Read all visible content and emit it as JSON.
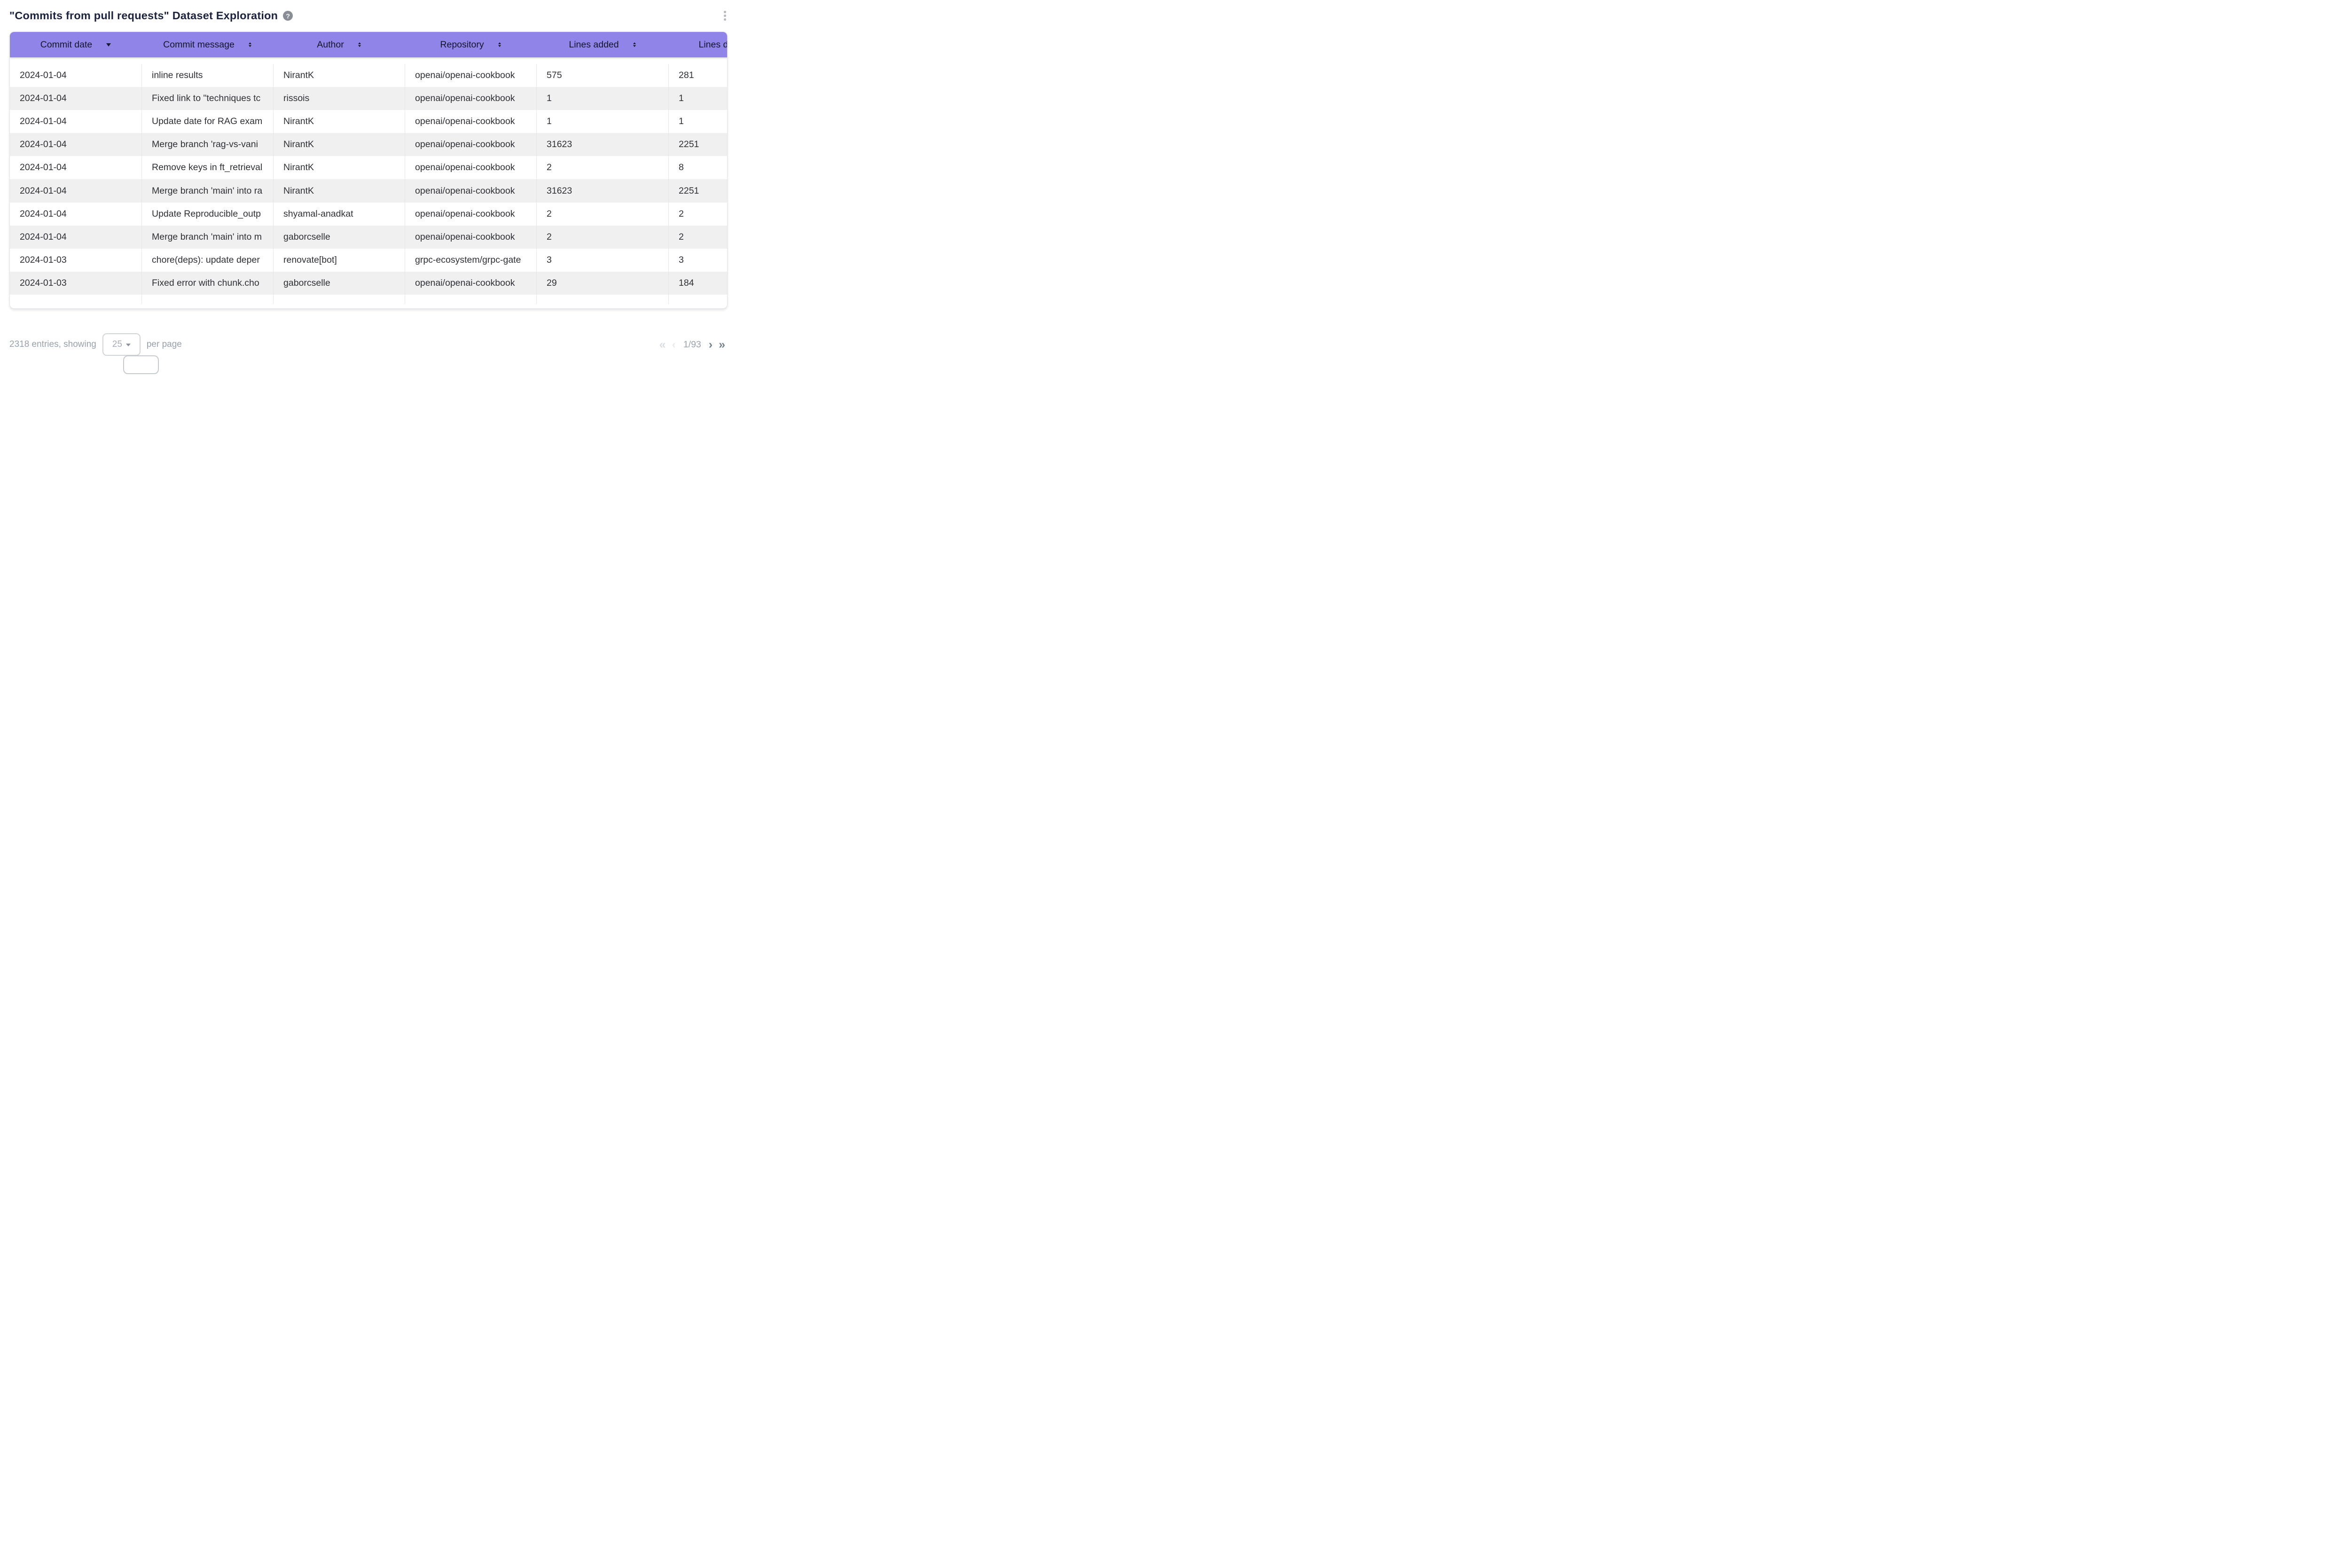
{
  "header": {
    "title": "\"Commits from pull requests\" Dataset Exploration",
    "help_icon": "?",
    "menu_icon": "kebab-vertical-dots"
  },
  "table": {
    "columns": [
      {
        "label": "Commit date",
        "field": "date",
        "sort": "desc"
      },
      {
        "label": "Commit message",
        "field": "message",
        "sort": "none"
      },
      {
        "label": "Author",
        "field": "author",
        "sort": "none"
      },
      {
        "label": "Repository",
        "field": "repo",
        "sort": "none"
      },
      {
        "label": "Lines added",
        "field": "added",
        "sort": "none"
      },
      {
        "label": "Lines deleted",
        "field": "deleted",
        "sort": "none"
      }
    ],
    "rows": [
      {
        "date": "2024-01-04",
        "message": "inline results",
        "author": "NirantK",
        "repo": "openai/openai-cookbook",
        "added": "575",
        "deleted": "281"
      },
      {
        "date": "2024-01-04",
        "message": "Fixed link to \"techniques tc",
        "author": "rissois",
        "repo": "openai/openai-cookbook",
        "added": "1",
        "deleted": "1"
      },
      {
        "date": "2024-01-04",
        "message": "Update date for RAG exam",
        "author": "NirantK",
        "repo": "openai/openai-cookbook",
        "added": "1",
        "deleted": "1"
      },
      {
        "date": "2024-01-04",
        "message": "Merge branch 'rag-vs-vani",
        "author": "NirantK",
        "repo": "openai/openai-cookbook",
        "added": "31623",
        "deleted": "2251"
      },
      {
        "date": "2024-01-04",
        "message": "Remove keys in ft_retrieval",
        "author": "NirantK",
        "repo": "openai/openai-cookbook",
        "added": "2",
        "deleted": "8"
      },
      {
        "date": "2024-01-04",
        "message": "Merge branch 'main' into ra",
        "author": "NirantK",
        "repo": "openai/openai-cookbook",
        "added": "31623",
        "deleted": "2251"
      },
      {
        "date": "2024-01-04",
        "message": "Update Reproducible_outp",
        "author": "shyamal-anadkat",
        "repo": "openai/openai-cookbook",
        "added": "2",
        "deleted": "2"
      },
      {
        "date": "2024-01-04",
        "message": "Merge branch 'main' into m",
        "author": "gaborcselle",
        "repo": "openai/openai-cookbook",
        "added": "2",
        "deleted": "2"
      },
      {
        "date": "2024-01-03",
        "message": "chore(deps): update deper",
        "author": "renovate[bot]",
        "repo": "grpc-ecosystem/grpc-gate",
        "added": "3",
        "deleted": "3"
      },
      {
        "date": "2024-01-03",
        "message": "Fixed error with chunk.cho",
        "author": "gaborcselle",
        "repo": "openai/openai-cookbook",
        "added": "29",
        "deleted": "184"
      }
    ]
  },
  "pagination": {
    "entries_text": "2318 entries, showing",
    "page_size": "25",
    "per_page_text": "per page",
    "page_indicator": "1/93",
    "first_icon": "«",
    "prev_icon": "‹",
    "next_icon": "›",
    "last_icon": "»"
  },
  "colors": {
    "accent_purple": "#9184E8",
    "stripe_gray": "#F0F0F1",
    "title_navy": "#1C2340",
    "muted_gray": "#99A1AB",
    "header_text": "#14162A"
  }
}
